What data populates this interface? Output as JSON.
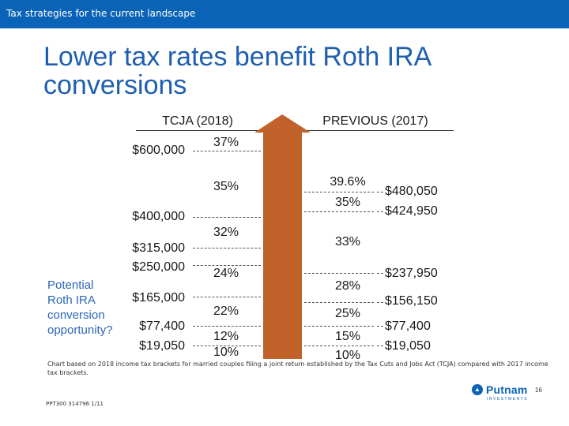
{
  "header": {
    "section": "Tax strategies for the current landscape"
  },
  "slide": {
    "title": "Lower tax rates benefit Roth IRA conversions"
  },
  "tcja": {
    "heading": "TCJA (2018)",
    "thresholds": [
      "$600,000",
      "$400,000",
      "$315,000",
      "$250,000",
      "$165,000",
      "$77,400",
      "$19,050"
    ],
    "rates": [
      "37%",
      "35%",
      "32%",
      "24%",
      "22%",
      "12%",
      "10%"
    ]
  },
  "previous": {
    "heading": "PREVIOUS (2017)",
    "rates": [
      "39.6%",
      "35%",
      "33%",
      "28%",
      "25%",
      "15%",
      "10%"
    ],
    "thresholds": [
      "$480,050",
      "$424,950",
      "$237,950",
      "$156,150",
      "$77,400",
      "$19,050"
    ]
  },
  "callout": {
    "text": "Potential Roth IRA conversion opportunity?"
  },
  "callout_lines": [
    "Potential",
    "Roth IRA",
    "conversion",
    "opportunity?"
  ],
  "colors": {
    "brand": "#0a63b6",
    "title": "#1f5fb0",
    "arrow": "#c0622a",
    "callout": "#2b66b8"
  },
  "footer": {
    "footnote": "Chart based on 2018 income tax brackets for married couples filing a joint return established by the Tax Cuts and Jobs Act (TCJA) compared with 2017 income tax brackets.",
    "code": "PPT300 314796 1/11",
    "logo": "Putnam",
    "logo_sub": "INVESTMENTS",
    "page": "16"
  }
}
